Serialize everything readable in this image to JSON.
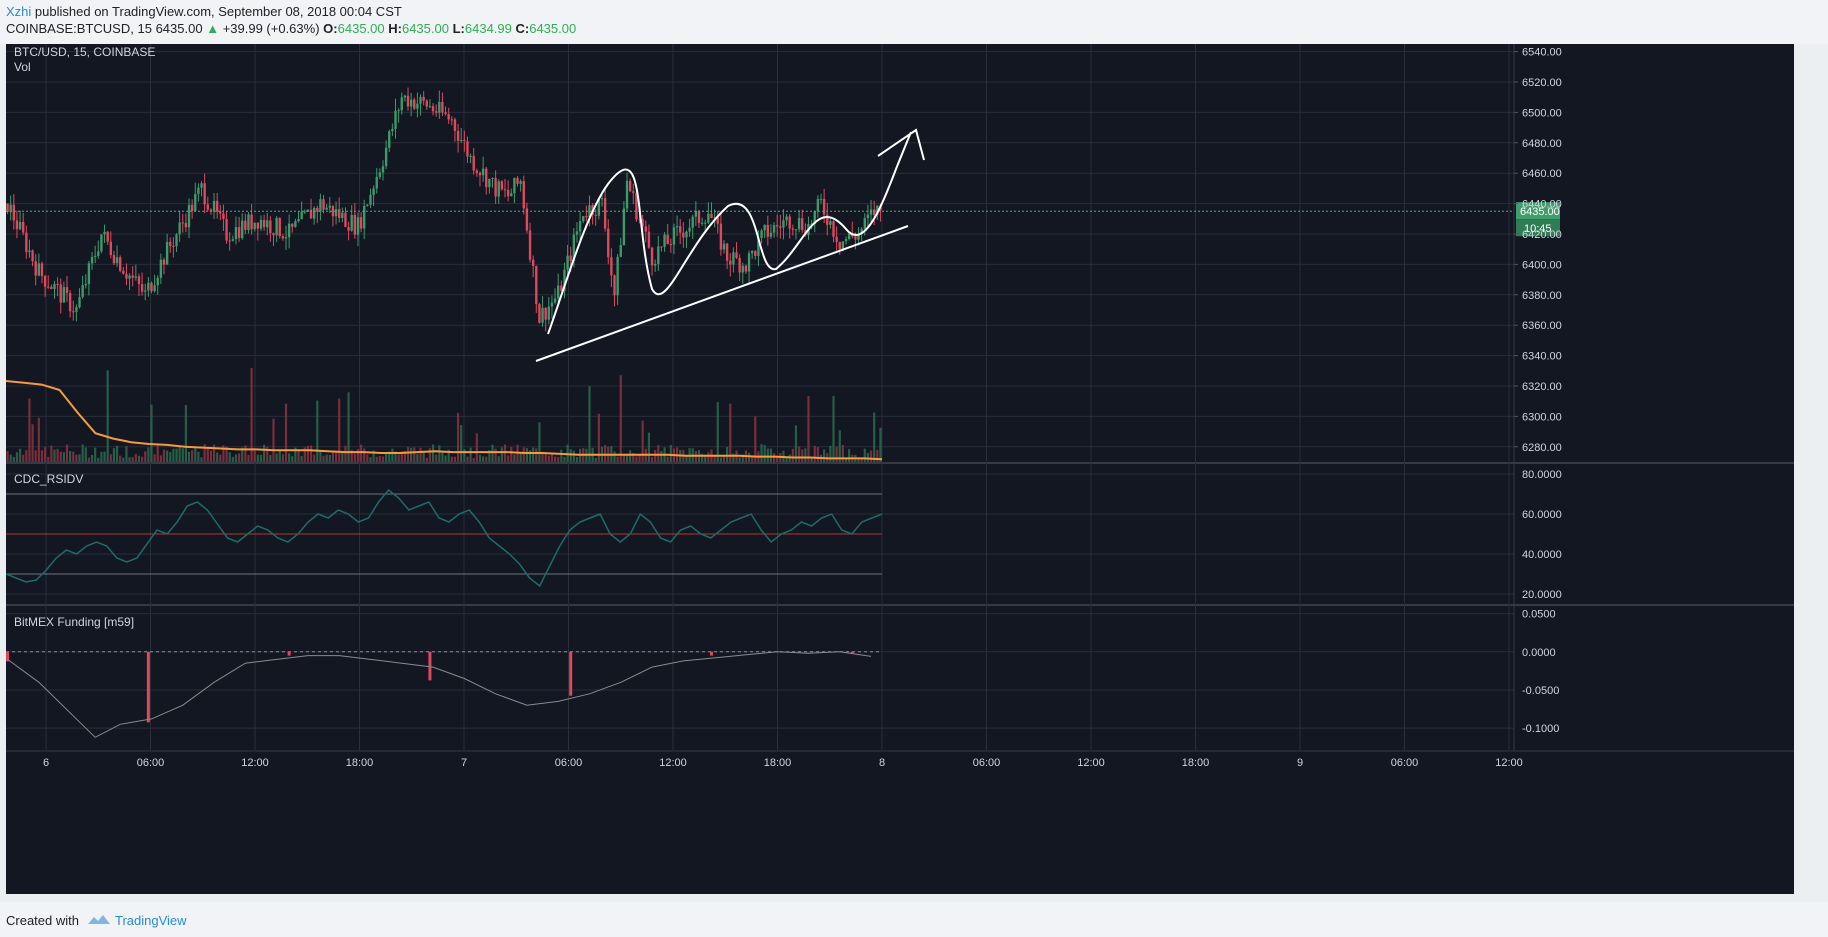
{
  "header": {
    "author": "Xzhi",
    "published": "published on TradingView.com, September 08, 2018 00:04 CST",
    "symbol_line": "COINBASE:BTCUSD, 15",
    "last": "6435.00",
    "arrow": "▲",
    "change": "+39.99 (+0.63%)",
    "o_label": "O:",
    "o_value": "6435.00",
    "h_label": "H:",
    "h_value": "6435.00",
    "l_label": "L:",
    "l_value": "6434.99",
    "c_label": "C:",
    "c_value": "6435.00"
  },
  "footer": {
    "created": "Created with",
    "brand": "TradingView"
  },
  "colors": {
    "background": "#131722",
    "grid": "#2a2e39",
    "up": "#3c9b6a",
    "down": "#e0485d",
    "volume_ma": "#f49c3d",
    "rsi": "#1e6b6b",
    "funding_line": "#8b8b8b",
    "axis_text": "#d1d4dc",
    "last_price_tag": "#3f9f6a",
    "drawing": "#ffffff"
  },
  "chart_data": [
    {
      "type": "candlestick",
      "title": "BTC/USD, 15, COINBASE",
      "sub_label": "Vol",
      "ylim": [
        6270,
        6545
      ],
      "y_ticks": [
        "6540.00",
        "6520.00",
        "6500.00",
        "6480.00",
        "6460.00",
        "6440.00",
        "6420.00",
        "6400.00",
        "6380.00",
        "6360.00",
        "6340.00",
        "6320.00",
        "6300.00",
        "6280.00"
      ],
      "x_ticks": [
        "6",
        "06:00",
        "12:00",
        "18:00",
        "7",
        "06:00",
        "12:00",
        "18:00",
        "8",
        "06:00",
        "12:00",
        "18:00",
        "9",
        "06:00",
        "12:00"
      ],
      "last_price_label": "6435.00",
      "countdown_label": "10:45",
      "last_price": 6435,
      "price_path": [
        [
          0,
          6440
        ],
        [
          10,
          6395
        ],
        [
          22,
          6370
        ],
        [
          30,
          6420
        ],
        [
          38,
          6395
        ],
        [
          44,
          6380
        ],
        [
          50,
          6405
        ],
        [
          62,
          6450
        ],
        [
          70,
          6420
        ],
        [
          80,
          6430
        ],
        [
          90,
          6420
        ],
        [
          100,
          6440
        ],
        [
          112,
          6425
        ],
        [
          120,
          6470
        ],
        [
          126,
          6510
        ],
        [
          134,
          6505
        ],
        [
          142,
          6495
        ],
        [
          148,
          6470
        ],
        [
          156,
          6450
        ],
        [
          160,
          6445
        ],
        [
          164,
          6455
        ],
        [
          170,
          6365
        ],
        [
          176,
          6380
        ],
        [
          184,
          6435
        ],
        [
          190,
          6440
        ],
        [
          194,
          6380
        ],
        [
          198,
          6455
        ],
        [
          206,
          6405
        ],
        [
          214,
          6420
        ],
        [
          224,
          6435
        ],
        [
          230,
          6405
        ],
        [
          236,
          6400
        ],
        [
          242,
          6420
        ],
        [
          250,
          6430
        ],
        [
          256,
          6425
        ],
        [
          260,
          6440
        ],
        [
          266,
          6415
        ],
        [
          272,
          6420
        ],
        [
          277,
          6435
        ]
      ],
      "volume_ma": [
        0.9,
        0.88,
        0.86,
        0.8,
        0.55,
        0.32,
        0.26,
        0.22,
        0.2,
        0.19,
        0.17,
        0.16,
        0.15,
        0.14,
        0.14,
        0.13,
        0.13,
        0.13,
        0.12,
        0.11,
        0.11,
        0.1,
        0.1,
        0.11,
        0.12,
        0.11,
        0.11,
        0.11,
        0.11,
        0.1,
        0.1,
        0.09,
        0.08,
        0.08,
        0.08,
        0.08,
        0.08,
        0.08,
        0.07,
        0.07,
        0.07,
        0.07,
        0.06,
        0.06,
        0.05,
        0.05,
        0.04,
        0.04,
        0.04,
        0.03
      ],
      "annotations": [
        "uptrend support line",
        "cup-and-handle style swing path",
        "breakout arrow"
      ]
    },
    {
      "type": "line",
      "title": "CDC_RSIDV",
      "ylim": [
        15,
        85
      ],
      "y_ticks": [
        "80.0000",
        "60.0000",
        "40.0000",
        "20.0000"
      ],
      "levels": [
        70,
        50,
        30
      ],
      "values": [
        30,
        28,
        26,
        27,
        32,
        38,
        42,
        40,
        44,
        46,
        44,
        38,
        36,
        38,
        45,
        52,
        50,
        56,
        64,
        66,
        62,
        55,
        48,
        46,
        50,
        54,
        52,
        48,
        46,
        50,
        56,
        60,
        58,
        62,
        60,
        56,
        58,
        66,
        72,
        68,
        62,
        64,
        66,
        58,
        56,
        60,
        62,
        56,
        48,
        44,
        40,
        35,
        28,
        24,
        34,
        44,
        52,
        56,
        58,
        60,
        50,
        46,
        50,
        60,
        56,
        48,
        46,
        52,
        54,
        50,
        48,
        52,
        56,
        58,
        60,
        52,
        46,
        50,
        52,
        56,
        54,
        58,
        60,
        52,
        50,
        56,
        58,
        60
      ]
    },
    {
      "type": "bar+line",
      "title": "BitMEX Funding [m59]",
      "ylim": [
        -0.13,
        0.06
      ],
      "y_ticks": [
        "0.0500",
        "0.0000",
        "-0.0500",
        "-0.1000"
      ],
      "funding_bars": [
        [
          0,
          -0.0125
        ],
        [
          45,
          -0.0925
        ],
        [
          90,
          -0.005
        ],
        [
          135,
          -0.0375
        ],
        [
          180,
          -0.0575
        ],
        [
          225,
          -0.005
        ],
        [
          270,
          -0.0025
        ]
      ],
      "predicted": [
        [
          0,
          -0.01
        ],
        [
          10,
          -0.04
        ],
        [
          20,
          -0.08
        ],
        [
          28,
          -0.112
        ],
        [
          36,
          -0.095
        ],
        [
          46,
          -0.088
        ],
        [
          56,
          -0.07
        ],
        [
          66,
          -0.04
        ],
        [
          76,
          -0.015
        ],
        [
          86,
          -0.01
        ],
        [
          96,
          -0.005
        ],
        [
          106,
          -0.005
        ],
        [
          116,
          -0.01
        ],
        [
          126,
          -0.015
        ],
        [
          136,
          -0.02
        ],
        [
          146,
          -0.035
        ],
        [
          156,
          -0.055
        ],
        [
          166,
          -0.07
        ],
        [
          176,
          -0.065
        ],
        [
          186,
          -0.055
        ],
        [
          196,
          -0.04
        ],
        [
          206,
          -0.02
        ],
        [
          216,
          -0.012
        ],
        [
          226,
          -0.008
        ],
        [
          236,
          -0.004
        ],
        [
          246,
          0
        ],
        [
          256,
          -0.002
        ],
        [
          266,
          0
        ],
        [
          276,
          -0.006
        ]
      ]
    }
  ]
}
